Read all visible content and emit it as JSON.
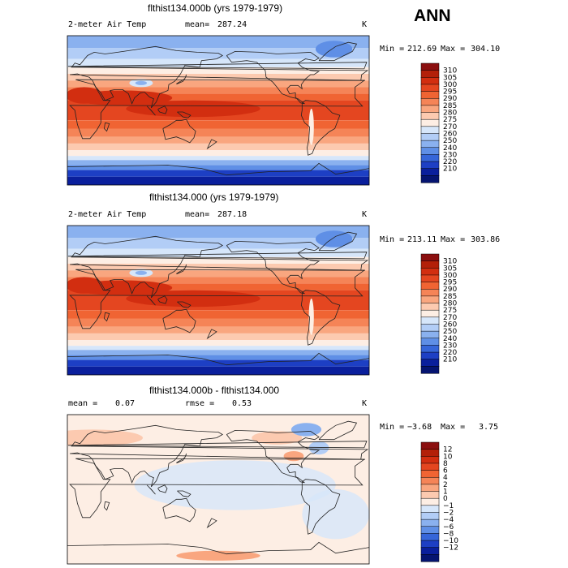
{
  "season": "ANN",
  "chart_data": [
    {
      "type": "heatmap",
      "title": "flthist134.000b (yrs 1979-1979)",
      "variable": "2-meter Air Temp",
      "mean_label": "mean=",
      "mean_value": "287.24",
      "units": "K",
      "min_label": "Min =",
      "min_value": "212.69",
      "max_label": "Max =",
      "max_value": "304.10",
      "colorbar_levels": [
        "310",
        "305",
        "300",
        "295",
        "290",
        "285",
        "280",
        "275",
        "270",
        "260",
        "250",
        "240",
        "230",
        "220",
        "210"
      ],
      "colorbar_colors": [
        "#8b0f0f",
        "#b32009",
        "#d22e10",
        "#e44620",
        "#f06433",
        "#f58457",
        "#f9a67f",
        "#fccab0",
        "#fdeee4",
        "#d6e6fa",
        "#b2cdf6",
        "#8ab1ef",
        "#5f8fe6",
        "#3666d9",
        "#1d3fc4",
        "#0a1f9c",
        "#051470"
      ]
    },
    {
      "type": "heatmap",
      "title": "flthist134.000 (yrs 1979-1979)",
      "variable": "2-meter Air Temp",
      "mean_label": "mean=",
      "mean_value": "287.18",
      "units": "K",
      "min_label": "Min =",
      "min_value": "213.11",
      "max_label": "Max =",
      "max_value": "303.86",
      "colorbar_levels": [
        "310",
        "305",
        "300",
        "295",
        "290",
        "285",
        "280",
        "275",
        "270",
        "260",
        "250",
        "240",
        "230",
        "220",
        "210"
      ],
      "colorbar_colors": [
        "#8b0f0f",
        "#b32009",
        "#d22e10",
        "#e44620",
        "#f06433",
        "#f58457",
        "#f9a67f",
        "#fccab0",
        "#fdeee4",
        "#d6e6fa",
        "#b2cdf6",
        "#8ab1ef",
        "#5f8fe6",
        "#3666d9",
        "#1d3fc4",
        "#0a1f9c",
        "#051470"
      ]
    },
    {
      "type": "heatmap",
      "title": "flthist134.000b - flthist134.000",
      "mean_label": "mean =",
      "mean_value": "0.07",
      "rmse_label": "rmse =",
      "rmse_value": "0.53",
      "units": "K",
      "min_label": "Min =",
      "min_value": "−3.68",
      "max_label": "Max =",
      "max_value": "3.75",
      "colorbar_levels": [
        "12",
        "10",
        "8",
        "6",
        "4",
        "2",
        "1",
        "0",
        "−1",
        "−2",
        "−4",
        "−6",
        "−8",
        "−10",
        "−12"
      ],
      "colorbar_colors": [
        "#8b0f0f",
        "#b32009",
        "#d22e10",
        "#e44620",
        "#f06433",
        "#f58457",
        "#f9a67f",
        "#fccab0",
        "#fdeee4",
        "#d6e6fa",
        "#b2cdf6",
        "#8ab1ef",
        "#5f8fe6",
        "#3666d9",
        "#1d3fc4",
        "#0a1f9c",
        "#051470"
      ]
    }
  ]
}
